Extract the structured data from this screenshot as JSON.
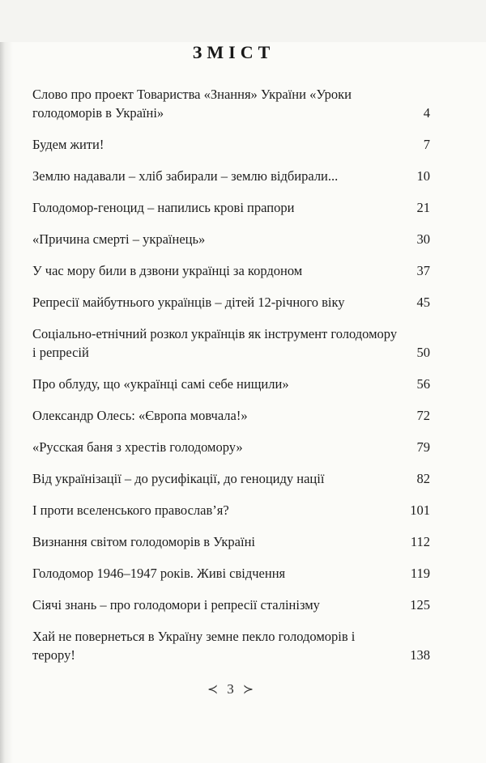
{
  "toc": {
    "title": "ЗМІСТ",
    "entries": [
      {
        "title": "Слово про проект Товариства «Знання» України «Уроки голодоморів в Україні»",
        "page": "4"
      },
      {
        "title": "Будем жити!",
        "page": "7"
      },
      {
        "title": "Землю надавали – хліб забирали – землю відбирали...",
        "page": "10"
      },
      {
        "title": "Голодомор-геноцид – напились крові прапори",
        "page": "21"
      },
      {
        "title": "«Причина смерті – українець»",
        "page": "30"
      },
      {
        "title": "У час мору били в дзвони українці за кордоном",
        "page": "37"
      },
      {
        "title": "Репресії майбутнього українців – дітей 12-річного віку",
        "page": "45"
      },
      {
        "title": "Соціально-етнічний розкол українців як інструмент голодомору і репресій",
        "page": "50"
      },
      {
        "title": "Про облуду, що «українці самі себе нищили»",
        "page": "56"
      },
      {
        "title": "Олександр Олесь: «Європа мовчала!»",
        "page": "72"
      },
      {
        "title": "«Русская баня з хрестів голодомору»",
        "page": "79"
      },
      {
        "title": "Від українізації – до русифікації, до геноциду нації",
        "page": "82"
      },
      {
        "title": "І проти вселенського православ’я?",
        "page": "101"
      },
      {
        "title": "Визнання світом голодоморів в Україні",
        "page": "112"
      },
      {
        "title": "Голодомор 1946–1947 років. Живі свідчення",
        "page": "119"
      },
      {
        "title": "Сіячі знань – про голодомори і репресії сталінізму",
        "page": "125"
      },
      {
        "title": "Хай не повернеться в Україну земне пекло голодоморів і терору!",
        "page": "138"
      }
    ]
  },
  "footer": {
    "left_ornament": "≺",
    "page_number": "3",
    "right_ornament": "≻"
  },
  "colors": {
    "paper": "#fbfbf8",
    "ink": "#1d1d1d"
  }
}
